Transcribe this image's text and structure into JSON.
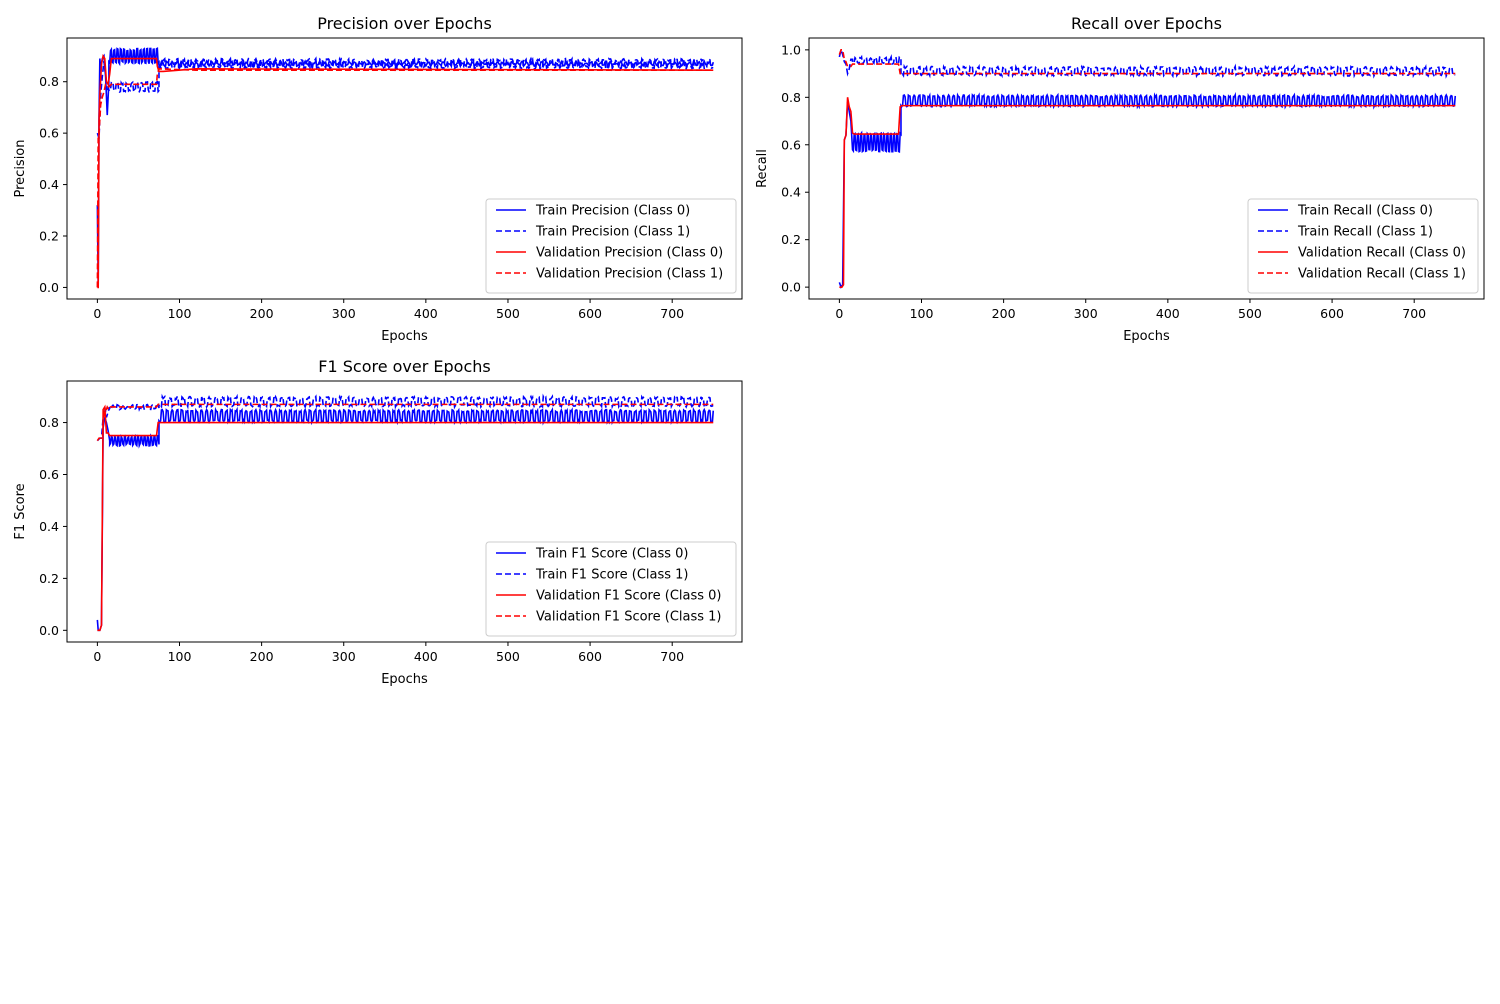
{
  "chart_data": [
    {
      "type": "line",
      "title": "Precision over Epochs",
      "xlabel": "Epochs",
      "ylabel": "Precision",
      "xlim": [
        -37,
        785
      ],
      "ylim": [
        -0.045,
        0.97
      ],
      "xticks": [
        0,
        100,
        200,
        300,
        400,
        500,
        600,
        700
      ],
      "yticks": [
        0.0,
        0.2,
        0.4,
        0.6,
        0.8
      ],
      "ytick_decimals": 1,
      "grid": false,
      "legend_position": "lower-right",
      "series": [
        {
          "name": "Train Precision (Class 0)",
          "color": "#0000ff",
          "style": "solid",
          "x": [
            0,
            1,
            2,
            3,
            4,
            6,
            8,
            10,
            12,
            14,
            16,
            18,
            20,
            75,
            100,
            750
          ],
          "y": [
            0.32,
            0.0,
            0.67,
            0.89,
            0.85,
            0.89,
            0.9,
            0.82,
            0.67,
            0.8,
            0.93,
            0.89,
            0.92,
            0.88,
            0.87,
            0.87
          ],
          "noise": {
            "from": 14,
            "to": 75,
            "lo": 0.87,
            "hi": 0.93,
            "period": 2
          },
          "noise2": {
            "from": 75,
            "to": 750,
            "lo": 0.86,
            "hi": 0.88,
            "period": 3
          }
        },
        {
          "name": "Train Precision (Class 1)",
          "color": "#0000ff",
          "style": "dashed",
          "x": [
            0,
            2,
            4,
            6,
            8,
            12,
            16,
            20,
            72,
            75,
            100,
            750
          ],
          "y": [
            0.6,
            0.58,
            0.75,
            0.82,
            0.88,
            0.77,
            0.78,
            0.78,
            0.78,
            0.84,
            0.87,
            0.88
          ],
          "noise": {
            "from": 14,
            "to": 75,
            "lo": 0.76,
            "hi": 0.8,
            "period": 3
          },
          "noise2": {
            "from": 75,
            "to": 750,
            "lo": 0.85,
            "hi": 0.89,
            "period": 4
          }
        },
        {
          "name": "Validation Precision (Class 0)",
          "color": "#ff0000",
          "style": "solid",
          "x": [
            0,
            1,
            2,
            3,
            5,
            7,
            9,
            11,
            13,
            15,
            17,
            72,
            73,
            75,
            80,
            120,
            750
          ],
          "y": [
            0.0,
            0.0,
            0.65,
            0.75,
            0.87,
            0.9,
            0.89,
            0.8,
            0.79,
            0.83,
            0.89,
            0.89,
            0.86,
            0.84,
            0.84,
            0.85,
            0.845
          ]
        },
        {
          "name": "Validation Precision (Class 1)",
          "color": "#ff0000",
          "style": "dashed",
          "x": [
            0,
            1,
            2,
            4,
            6,
            8,
            10,
            12,
            14,
            17,
            72,
            73,
            75,
            120,
            750
          ],
          "y": [
            0.0,
            0.58,
            0.6,
            0.71,
            0.74,
            0.76,
            0.79,
            0.79,
            0.78,
            0.79,
            0.79,
            0.83,
            0.85,
            0.845,
            0.845
          ]
        }
      ]
    },
    {
      "type": "line",
      "title": "Recall over Epochs",
      "xlabel": "Epochs",
      "ylabel": "Recall",
      "xlim": [
        -37,
        785
      ],
      "ylim": [
        -0.05,
        1.05
      ],
      "xticks": [
        0,
        100,
        200,
        300,
        400,
        500,
        600,
        700
      ],
      "yticks": [
        0.0,
        0.2,
        0.4,
        0.6,
        0.8,
        1.0
      ],
      "ytick_decimals": 1,
      "grid": false,
      "legend_position": "lower-right",
      "series": [
        {
          "name": "Train Recall (Class 0)",
          "color": "#0000ff",
          "style": "solid",
          "x": [
            0,
            2,
            4,
            6,
            8,
            10,
            12,
            14,
            16,
            18,
            72,
            75,
            100,
            750
          ],
          "y": [
            0.02,
            0.0,
            0.01,
            0.62,
            0.64,
            0.78,
            0.74,
            0.7,
            0.58,
            0.63,
            0.6,
            0.8,
            0.78,
            0.78
          ],
          "noise": {
            "from": 16,
            "to": 75,
            "lo": 0.57,
            "hi": 0.65,
            "period": 2
          },
          "noise2": {
            "from": 75,
            "to": 750,
            "lo": 0.76,
            "hi": 0.81,
            "period": 3
          }
        },
        {
          "name": "Train Recall (Class 1)",
          "color": "#0000ff",
          "style": "dashed",
          "x": [
            0,
            2,
            4,
            6,
            8,
            10,
            12,
            14,
            16,
            72,
            75,
            100,
            750
          ],
          "y": [
            0.97,
            1.0,
            0.98,
            0.95,
            0.94,
            0.9,
            0.92,
            0.96,
            0.96,
            0.96,
            0.9,
            0.92,
            0.92
          ],
          "noise": {
            "from": 16,
            "to": 75,
            "lo": 0.94,
            "hi": 0.97,
            "period": 3
          },
          "noise2": {
            "from": 75,
            "to": 750,
            "lo": 0.89,
            "hi": 0.93,
            "period": 4
          }
        },
        {
          "name": "Validation Recall (Class 0)",
          "color": "#ff0000",
          "style": "solid",
          "x": [
            0,
            3,
            5,
            6,
            8,
            10,
            12,
            14,
            16,
            18,
            72,
            74,
            76,
            750
          ],
          "y": [
            0.0,
            0.0,
            0.01,
            0.62,
            0.64,
            0.8,
            0.76,
            0.74,
            0.65,
            0.645,
            0.645,
            0.76,
            0.765,
            0.765
          ]
        },
        {
          "name": "Validation Recall (Class 1)",
          "color": "#ff0000",
          "style": "dashed",
          "x": [
            0,
            2,
            4,
            6,
            8,
            10,
            12,
            14,
            16,
            18,
            72,
            74,
            76,
            750
          ],
          "y": [
            0.98,
            1.0,
            1.0,
            0.96,
            0.95,
            0.93,
            0.93,
            0.93,
            0.94,
            0.94,
            0.94,
            0.9,
            0.9,
            0.9
          ]
        }
      ]
    },
    {
      "type": "line",
      "title": "F1 Score over Epochs",
      "xlabel": "Epochs",
      "ylabel": "F1 Score",
      "xlim": [
        -37,
        785
      ],
      "ylim": [
        -0.045,
        0.96
      ],
      "xticks": [
        0,
        100,
        200,
        300,
        400,
        500,
        600,
        700
      ],
      "yticks": [
        0.0,
        0.2,
        0.4,
        0.6,
        0.8
      ],
      "ytick_decimals": 1,
      "grid": false,
      "legend_position": "lower-right",
      "series": [
        {
          "name": "Train F1 Score (Class 0)",
          "color": "#0000ff",
          "style": "solid",
          "x": [
            0,
            1,
            3,
            5,
            7,
            9,
            11,
            13,
            15,
            72,
            75,
            100,
            750
          ],
          "y": [
            0.04,
            0.0,
            0.0,
            0.02,
            0.78,
            0.82,
            0.8,
            0.77,
            0.73,
            0.72,
            0.82,
            0.82,
            0.82
          ],
          "noise": {
            "from": 15,
            "to": 75,
            "lo": 0.71,
            "hi": 0.75,
            "period": 2
          },
          "noise2": {
            "from": 75,
            "to": 750,
            "lo": 0.8,
            "hi": 0.85,
            "period": 3
          }
        },
        {
          "name": "Train F1 Score (Class 1)",
          "color": "#0000ff",
          "style": "dashed",
          "x": [
            0,
            3,
            5,
            7,
            9,
            11,
            13,
            15,
            72,
            75,
            100,
            750
          ],
          "y": [
            0.73,
            0.74,
            0.74,
            0.82,
            0.86,
            0.82,
            0.84,
            0.86,
            0.86,
            0.88,
            0.88,
            0.88
          ],
          "noise": {
            "from": 15,
            "to": 75,
            "lo": 0.85,
            "hi": 0.87,
            "period": 3
          },
          "noise2": {
            "from": 75,
            "to": 750,
            "lo": 0.86,
            "hi": 0.9,
            "period": 4
          }
        },
        {
          "name": "Validation F1 Score (Class 0)",
          "color": "#ff0000",
          "style": "solid",
          "x": [
            0,
            3,
            5,
            7,
            9,
            11,
            13,
            15,
            72,
            74,
            76,
            750
          ],
          "y": [
            0.0,
            0.0,
            0.02,
            0.85,
            0.86,
            0.76,
            0.76,
            0.75,
            0.75,
            0.8,
            0.8,
            0.8
          ]
        },
        {
          "name": "Validation F1 Score (Class 1)",
          "color": "#ff0000",
          "style": "dashed",
          "x": [
            0,
            2,
            4,
            6,
            8,
            10,
            12,
            14,
            16,
            72,
            74,
            76,
            750
          ],
          "y": [
            0.73,
            0.74,
            0.74,
            0.74,
            0.84,
            0.84,
            0.86,
            0.85,
            0.86,
            0.86,
            0.87,
            0.87,
            0.87
          ]
        }
      ]
    }
  ]
}
